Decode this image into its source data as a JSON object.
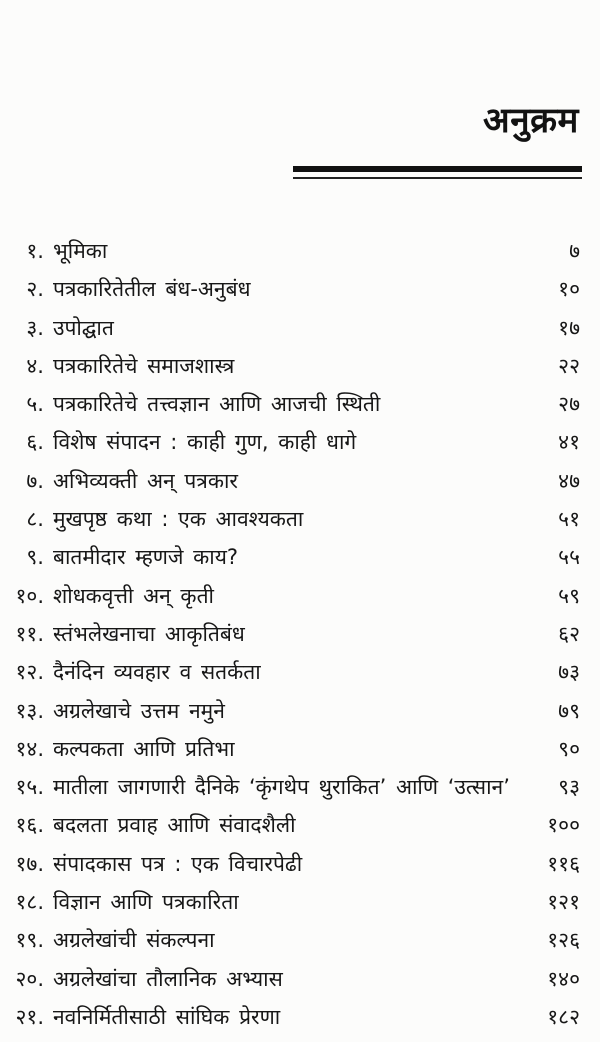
{
  "page": {
    "title": "अनुक्रम",
    "background": "#fcfcfb",
    "ink_color": "#161616"
  },
  "toc": {
    "entries": [
      {
        "no": "१.",
        "title": "भूमिका",
        "page": "७"
      },
      {
        "no": "२.",
        "title": "पत्रकारितेतील बंध-अनुबंध",
        "page": "१०"
      },
      {
        "no": "३.",
        "title": "उपोद्घात",
        "page": "१७"
      },
      {
        "no": "४.",
        "title": "पत्रकारितेचे समाजशास्त्र",
        "page": "२२"
      },
      {
        "no": "५.",
        "title": "पत्रकारितेचे तत्त्वज्ञान आणि आजची स्थिती",
        "page": "२७"
      },
      {
        "no": "६.",
        "title": "विशेष संपादन : काही गुण, काही धागे",
        "page": "४१"
      },
      {
        "no": "७.",
        "title": "अभिव्यक्ती अन् पत्रकार",
        "page": "४७"
      },
      {
        "no": "८.",
        "title": "मुखपृष्ठ कथा : एक आवश्यकता",
        "page": "५१"
      },
      {
        "no": "९.",
        "title": "बातमीदार म्हणजे काय?",
        "page": "५५"
      },
      {
        "no": "१०.",
        "title": "शोधकवृत्ती अन् कृती",
        "page": "५९"
      },
      {
        "no": "११.",
        "title": "स्तंभलेखनाचा आकृतिबंध",
        "page": "६२"
      },
      {
        "no": "१२.",
        "title": "दैनंदिन व्यवहार व सतर्कता",
        "page": "७३"
      },
      {
        "no": "१३.",
        "title": "अग्रलेखाचे उत्तम नमुने",
        "page": "७९"
      },
      {
        "no": "१४.",
        "title": "कल्पकता आणि प्रतिभा",
        "page": "९०"
      },
      {
        "no": "१५.",
        "title": "मातीला जागणारी दैनिके ‘कृंगथेप थुराकित’ आणि ‘उत्सान’",
        "page": "९३"
      },
      {
        "no": "१६.",
        "title": "बदलता प्रवाह आणि संवादशैली",
        "page": "१००"
      },
      {
        "no": "१७.",
        "title": "संपादकास पत्र : एक विचारपेढी",
        "page": "११६"
      },
      {
        "no": "१८.",
        "title": "विज्ञान आणि पत्रकारिता",
        "page": "१२१"
      },
      {
        "no": "१९.",
        "title": "अग्रलेखांची संकल्पना",
        "page": "१२६"
      },
      {
        "no": "२०.",
        "title": "अग्रलेखांचा तौलानिक अभ्यास",
        "page": "१४०"
      },
      {
        "no": "२१.",
        "title": "नवनिर्मितीसाठी सांघिक प्रेरणा",
        "page": "१८२"
      }
    ]
  }
}
